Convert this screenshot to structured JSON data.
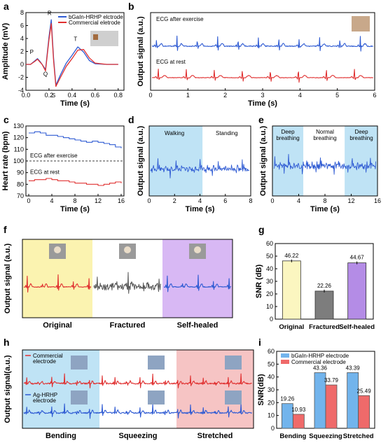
{
  "colors": {
    "blue": "#2f5bd3",
    "red": "#e03030",
    "gray": "#555555",
    "light_blue": "#72b4ec",
    "red_bar": "#ef6a6a",
    "yellow_bg": "#fbf3b0",
    "purple_bg": "#d8b8f4",
    "cyan_bg": "#bfe3f5",
    "pink_bg": "#f6c4c4"
  },
  "panels": {
    "a": "a",
    "b": "b",
    "c": "c",
    "d": "d",
    "e": "e",
    "f": "f",
    "g": "g",
    "h": "h",
    "i": "i"
  },
  "chart_data": [
    {
      "panel": "a",
      "type": "line",
      "xlabel": "Time (s)",
      "ylabel": "Amplitude (mV)",
      "xlim": [
        0,
        0.85
      ],
      "ylim": [
        -4,
        8
      ],
      "xticks": [
        "0.0",
        "0.2",
        "0.4",
        "0.6",
        "0.8"
      ],
      "yticks": [
        "-4",
        "-2",
        "0",
        "2",
        "4",
        "6",
        "8"
      ],
      "legend": [
        "bGaIn-HRHP elctrode",
        "Commercial eletrode"
      ],
      "annotations": [
        "P",
        "R",
        "Q",
        "S",
        "T"
      ],
      "series": [
        {
          "name": "bGaIn-HRHP elctrode",
          "x": [
            0,
            0.04,
            0.08,
            0.1,
            0.12,
            0.14,
            0.17,
            0.2,
            0.22,
            0.24,
            0.26,
            0.3,
            0.35,
            0.4,
            0.45,
            0.5,
            0.55,
            0.6,
            0.7,
            0.8
          ],
          "y": [
            0,
            0,
            0.6,
            0.9,
            0.5,
            0,
            -0.8,
            4.2,
            6.9,
            1.0,
            -3.2,
            -1.6,
            0.2,
            1.4,
            2.7,
            1.9,
            0.6,
            0.1,
            0,
            0
          ]
        },
        {
          "name": "Commercial eletrode",
          "x": [
            0,
            0.04,
            0.08,
            0.1,
            0.12,
            0.14,
            0.17,
            0.2,
            0.22,
            0.24,
            0.26,
            0.3,
            0.35,
            0.4,
            0.45,
            0.5,
            0.55,
            0.6,
            0.7,
            0.8
          ],
          "y": [
            0,
            0,
            0.5,
            0.8,
            0.4,
            0,
            -1.0,
            3.8,
            6.3,
            0.6,
            -3.4,
            -2.0,
            -0.3,
            0.9,
            2.2,
            2.3,
            1.0,
            0.2,
            0,
            0
          ]
        }
      ]
    },
    {
      "panel": "b",
      "type": "line",
      "xlabel": "Time (s)",
      "ylabel": "Output signal (a.u.)",
      "xlim": [
        0,
        6
      ],
      "xticks": [
        "0",
        "1",
        "2",
        "3",
        "4",
        "5",
        "6"
      ],
      "annotations": [
        "ECG after exercise",
        "ECG at rest"
      ],
      "series": [
        {
          "name": "ECG after exercise",
          "beats_per_6s": 11
        },
        {
          "name": "ECG at rest",
          "beats_per_6s": 8
        }
      ]
    },
    {
      "panel": "c",
      "type": "line",
      "xlabel": "Time (s)",
      "ylabel": "Heart rate (bpm)",
      "xlim": [
        0,
        16
      ],
      "ylim": [
        70,
        130
      ],
      "xticks": [
        "0",
        "4",
        "8",
        "12",
        "16"
      ],
      "yticks": [
        "70",
        "80",
        "90",
        "100",
        "110",
        "120",
        "130"
      ],
      "annotations": [
        "ECG after exercise",
        "ECG at rest"
      ],
      "reference_line": 100,
      "series": [
        {
          "name": "ECG after exercise",
          "x": [
            0,
            1,
            2,
            3,
            4,
            5,
            6,
            7,
            8,
            9,
            10,
            11,
            12,
            13,
            14,
            15,
            16
          ],
          "y": [
            124,
            125,
            124,
            122,
            122,
            121,
            120,
            119,
            118,
            117,
            116,
            117,
            116,
            115,
            114,
            112,
            111
          ]
        },
        {
          "name": "ECG at rest",
          "x": [
            0,
            1,
            2,
            3,
            4,
            5,
            6,
            7,
            8,
            9,
            10,
            11,
            12,
            13,
            14,
            15,
            16
          ],
          "y": [
            83,
            84,
            84,
            85,
            84,
            83,
            83,
            82,
            81,
            81,
            80,
            80,
            79,
            80,
            81,
            82,
            81
          ]
        }
      ]
    },
    {
      "panel": "d",
      "type": "line",
      "xlabel": "Time (s)",
      "ylabel": "Output signal (a.u.)",
      "xlim": [
        0,
        8
      ],
      "xticks": [
        "0",
        "2",
        "4",
        "6",
        "8"
      ],
      "annotations": [
        "Walking",
        "Standing"
      ]
    },
    {
      "panel": "e",
      "type": "line",
      "xlabel": "Time (s)",
      "ylabel": "Output signal (a.u.)",
      "xlim": [
        0,
        16
      ],
      "xticks": [
        "0",
        "4",
        "8",
        "12",
        "16"
      ],
      "annotations": [
        "Deep breathing",
        "Normal breathing",
        "Deep breathing"
      ]
    },
    {
      "panel": "f",
      "type": "line",
      "ylabel": "Output signal (a.u.)",
      "categories": [
        "Original",
        "Fractured",
        "Self-healed"
      ]
    },
    {
      "panel": "g",
      "type": "bar",
      "ylabel": "SNR (dB)",
      "ylim": [
        0,
        60
      ],
      "yticks": [
        "0",
        "10",
        "20",
        "30",
        "40",
        "50",
        "60"
      ],
      "categories": [
        "Original",
        "Fractured",
        "Self-healed"
      ],
      "values": [
        46.22,
        22.26,
        44.67
      ],
      "value_labels": [
        "46.22",
        "22.26",
        "44.67"
      ]
    },
    {
      "panel": "h",
      "type": "line",
      "ylabel": "Output signal(a.u.)",
      "categories": [
        "Bending",
        "Squeezing",
        "Stretched"
      ],
      "legend": [
        "Commercial electrode",
        "Ag-HRHP electrode"
      ]
    },
    {
      "panel": "i",
      "type": "bar",
      "ylabel": "SNR(dB)",
      "ylim": [
        0,
        60
      ],
      "yticks": [
        "0",
        "10",
        "20",
        "30",
        "40",
        "50",
        "60"
      ],
      "categories": [
        "Bending",
        "Squeezing",
        "Stretched"
      ],
      "series": [
        {
          "name": "bGaIn-HRHP electrode",
          "values": [
            19.26,
            43.36,
            43.39
          ],
          "value_labels": [
            "19.26",
            "43.36",
            "43.39"
          ]
        },
        {
          "name": "Commercial electrode",
          "values": [
            10.93,
            33.79,
            25.49
          ],
          "value_labels": [
            "10.93",
            "33.79",
            "25.49"
          ]
        }
      ]
    }
  ]
}
